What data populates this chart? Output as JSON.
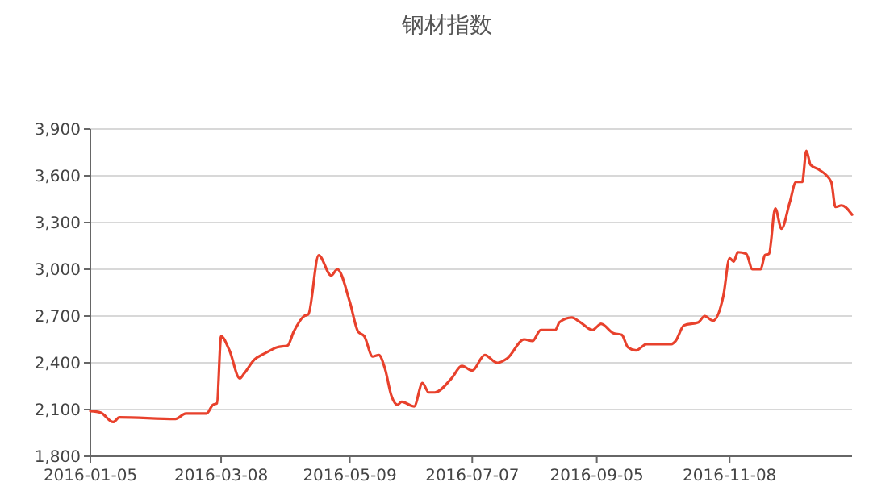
{
  "chart_data": {
    "type": "line",
    "title": "钢材指数",
    "x": [
      "2016-01-05",
      "2016-01-10",
      "2016-01-16",
      "2016-01-19",
      "2016-02-15",
      "2016-02-20",
      "2016-03-01",
      "2016-03-04",
      "2016-03-06",
      "2016-03-08",
      "2016-03-12",
      "2016-03-17",
      "2016-03-19",
      "2016-03-24",
      "2016-03-29",
      "2016-04-04",
      "2016-04-09",
      "2016-04-12",
      "2016-04-17",
      "2016-04-19",
      "2016-04-24",
      "2016-04-30",
      "2016-05-03",
      "2016-05-09",
      "2016-05-13",
      "2016-05-16",
      "2016-05-20",
      "2016-05-23",
      "2016-05-26",
      "2016-05-29",
      "2016-06-01",
      "2016-06-03",
      "2016-06-09",
      "2016-06-13",
      "2016-06-16",
      "2016-06-19",
      "2016-06-27",
      "2016-07-02",
      "2016-07-07",
      "2016-07-13",
      "2016-07-19",
      "2016-07-24",
      "2016-08-01",
      "2016-08-05",
      "2016-08-09",
      "2016-08-16",
      "2016-08-18",
      "2016-08-24",
      "2016-08-28",
      "2016-09-03",
      "2016-09-05",
      "2016-09-07",
      "2016-09-13",
      "2016-09-17",
      "2016-09-20",
      "2016-09-24",
      "2016-09-29",
      "2016-10-11",
      "2016-10-13",
      "2016-10-17",
      "2016-10-24",
      "2016-10-27",
      "2016-10-31",
      "2016-11-05",
      "2016-11-08",
      "2016-11-10",
      "2016-11-12",
      "2016-11-16",
      "2016-11-19",
      "2016-11-23",
      "2016-11-25",
      "2016-11-27",
      "2016-11-30",
      "2016-12-03",
      "2016-12-07",
      "2016-12-10",
      "2016-12-13",
      "2016-12-15",
      "2016-12-17",
      "2016-12-21",
      "2016-12-27",
      "2016-12-29",
      "2017-01-01",
      "2017-01-06"
    ],
    "series": [
      {
        "color": "#e8412c",
        "values": [
          2090,
          2080,
          2020,
          2050,
          2040,
          2075,
          2075,
          2130,
          2140,
          2570,
          2480,
          2300,
          2330,
          2420,
          2460,
          2500,
          2510,
          2600,
          2700,
          2710,
          3090,
          2960,
          3000,
          2790,
          2600,
          2570,
          2440,
          2450,
          2360,
          2190,
          2130,
          2150,
          2120,
          2270,
          2210,
          2210,
          2300,
          2380,
          2350,
          2450,
          2400,
          2430,
          2550,
          2540,
          2610,
          2610,
          2660,
          2690,
          2660,
          2610,
          2630,
          2650,
          2590,
          2580,
          2500,
          2480,
          2520,
          2520,
          2540,
          2640,
          2660,
          2700,
          2670,
          2830,
          3070,
          3050,
          3110,
          3100,
          3000,
          3000,
          3090,
          3100,
          3390,
          3260,
          3430,
          3560,
          3560,
          3760,
          3670,
          3640,
          3560,
          3400,
          3410,
          3350
        ]
      }
    ],
    "xlim": [
      "2016-01-05",
      "2017-01-06"
    ],
    "xticks": [
      {
        "value": "2016-01-05",
        "label": "2016-01-05"
      },
      {
        "value": "2016-03-08",
        "label": "2016-03-08"
      },
      {
        "value": "2016-05-09",
        "label": "2016-05-09"
      },
      {
        "value": "2016-07-07",
        "label": "2016-07-07"
      },
      {
        "value": "2016-09-05",
        "label": "2016-09-05"
      },
      {
        "value": "2016-11-08",
        "label": "2016-11-08"
      }
    ],
    "ylim": [
      1800,
      3900
    ],
    "yticks": [
      {
        "value": 1800,
        "label": "1,800"
      },
      {
        "value": 2100,
        "label": "2,100"
      },
      {
        "value": 2400,
        "label": "2,400"
      },
      {
        "value": 2700,
        "label": "2,700"
      },
      {
        "value": 3000,
        "label": "3,000"
      },
      {
        "value": 3300,
        "label": "3,300"
      },
      {
        "value": 3600,
        "label": "3,600"
      },
      {
        "value": 3900,
        "label": "3,900"
      }
    ],
    "grid": "y",
    "marker": "none",
    "line_style": "solid"
  }
}
